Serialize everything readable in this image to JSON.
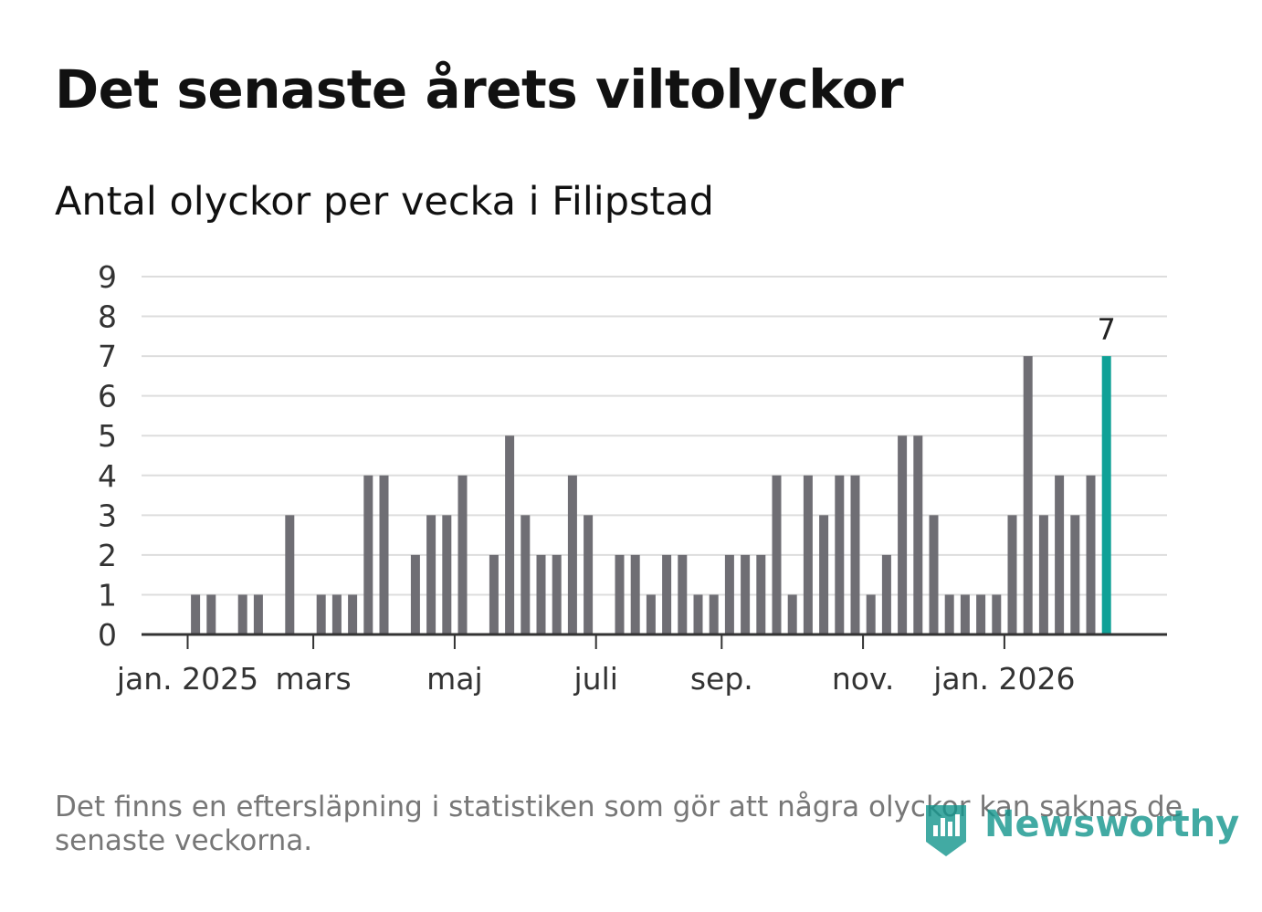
{
  "title": "Det senaste årets viltolyckor",
  "subtitle": "Antal olyckor per vecka i Filipstad",
  "footnote": "Det finns en eftersläpning i statistiken som gör att några olyckor kan saknas de senaste veckorna.",
  "logo": {
    "text": "Newsworthy",
    "icon": "newsworthy-logo-icon"
  },
  "colors": {
    "bar": "#6f6e74",
    "highlight": "#0fa197",
    "grid": "#dddddd",
    "axis": "#333333",
    "logo": "#13958d"
  },
  "chart_data": {
    "type": "bar",
    "title": "Antal olyckor per vecka i Filipstad",
    "xlabel": "",
    "ylabel": "",
    "ylim": [
      0,
      9
    ],
    "yticks": [
      0,
      1,
      2,
      3,
      4,
      5,
      6,
      7,
      8,
      9
    ],
    "grid": true,
    "x_ticks": [
      {
        "label": "jan. 2025",
        "index": 2.5
      },
      {
        "label": "mars",
        "index": 10.5
      },
      {
        "label": "maj",
        "index": 19.5
      },
      {
        "label": "juli",
        "index": 28.5
      },
      {
        "label": "sep.",
        "index": 36.5
      },
      {
        "label": "nov.",
        "index": 45.5
      },
      {
        "label": "jan. 2026",
        "index": 54.5
      }
    ],
    "values": [
      0,
      0,
      0,
      1,
      1,
      0,
      1,
      1,
      0,
      3,
      0,
      1,
      1,
      1,
      4,
      4,
      0,
      2,
      3,
      3,
      4,
      0,
      2,
      5,
      3,
      2,
      2,
      4,
      3,
      0,
      2,
      2,
      1,
      2,
      2,
      1,
      1,
      2,
      2,
      2,
      4,
      1,
      4,
      3,
      4,
      4,
      1,
      2,
      5,
      5,
      3,
      1,
      1,
      1,
      1,
      3,
      7,
      3,
      4,
      3,
      4,
      7
    ],
    "highlight_index": 61,
    "highlight_label": "7"
  }
}
